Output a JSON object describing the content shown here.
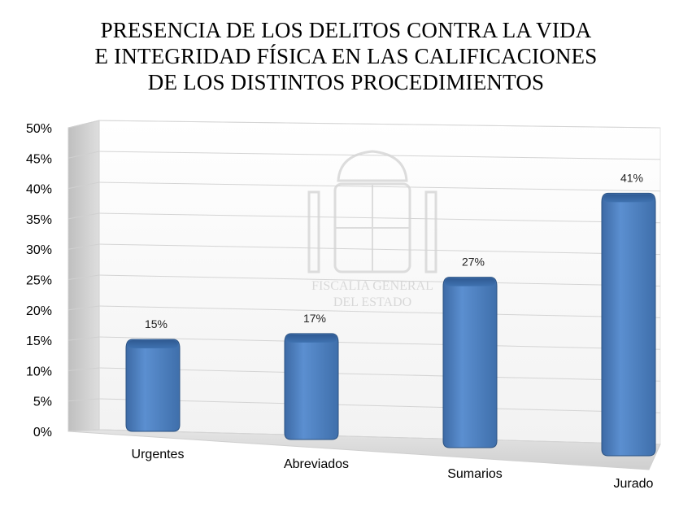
{
  "chart_data": {
    "type": "bar",
    "title_lines": [
      "PRESENCIA DE LOS DELITOS CONTRA LA VIDA",
      "E INTEGRIDAD FÍSICA EN LAS CALIFICACIONES",
      "DE LOS DISTINTOS PROCEDIMIENTOS"
    ],
    "categories": [
      "Urgentes",
      "Abreviados",
      "Sumarios",
      "Jurado"
    ],
    "values": [
      15,
      17,
      27,
      41
    ],
    "data_labels": [
      "15%",
      "17%",
      "27%",
      "41%"
    ],
    "yticks": [
      "0%",
      "5%",
      "10%",
      "15%",
      "20%",
      "25%",
      "30%",
      "35%",
      "40%",
      "45%",
      "50%"
    ],
    "ylim": [
      0,
      50
    ],
    "y_unit": "%",
    "grid": true,
    "legend": false,
    "style": "3d-column",
    "bar_color": "#4f81bd",
    "watermark_lines": [
      "FISCALIA GENERAL",
      "DEL ESTADO"
    ]
  }
}
